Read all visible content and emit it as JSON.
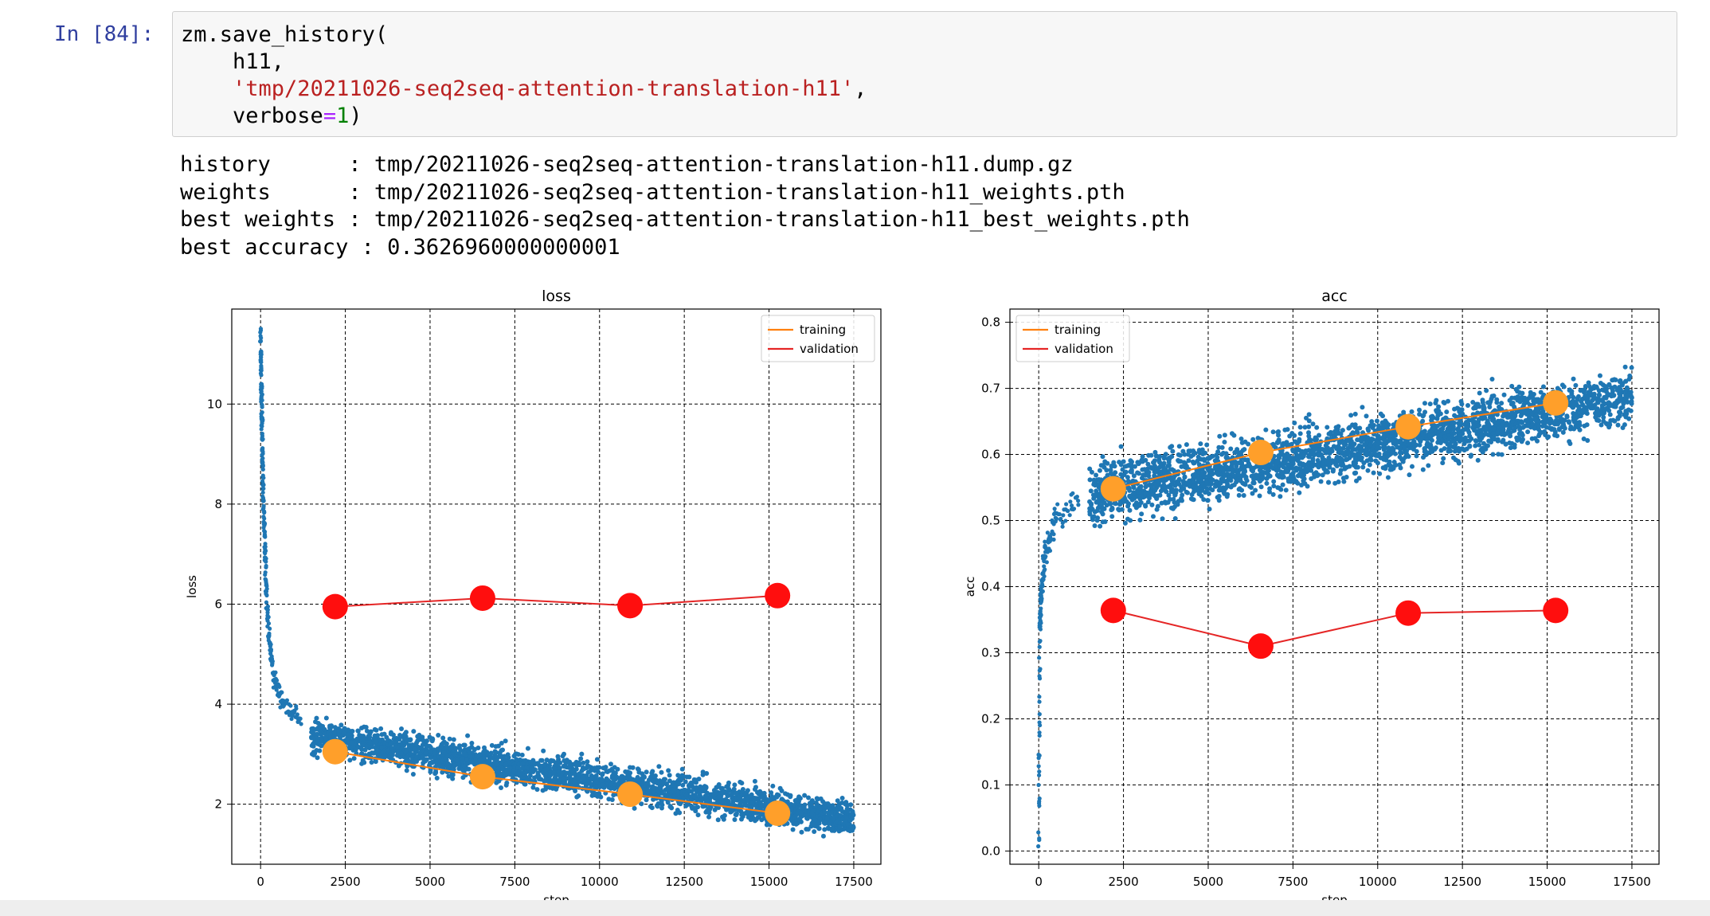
{
  "cell": {
    "prompt": "In [84]:",
    "code_lines": [
      {
        "pre": "zm.save_history(",
        "str": "",
        "op": "",
        "num": "",
        "post": ""
      },
      {
        "pre": "    h11,",
        "str": "",
        "op": "",
        "num": "",
        "post": ""
      },
      {
        "pre": "    ",
        "str": "'tmp/20211026-seq2seq-attention-translation-h11'",
        "op": "",
        "num": "",
        "post": ","
      },
      {
        "pre": "    verbose",
        "str": "",
        "op": "=",
        "num": "1",
        "post": ")"
      }
    ]
  },
  "output_lines": [
    "history      : tmp/20211026-seq2seq-attention-translation-h11.dump.gz",
    "weights      : tmp/20211026-seq2seq-attention-translation-h11_weights.pth",
    "best weights : tmp/20211026-seq2seq-attention-translation-h11_best_weights.pth",
    "best accuracy : 0.3626960000000001"
  ],
  "colors": {
    "scatter": "#1f77b4",
    "training": "#ff9f2a",
    "validation": "#ff0e0e",
    "training_line": "#ff7f0e",
    "validation_line": "#e52525"
  },
  "chart_data": [
    {
      "type": "scatter",
      "title": "loss",
      "xlabel": "step",
      "ylabel": "loss",
      "xlim": [
        -850,
        18300
      ],
      "ylim": [
        0.8,
        11.9
      ],
      "xticks": [
        0,
        2500,
        5000,
        7500,
        10000,
        12500,
        15000,
        17500
      ],
      "xtick_labels": [
        "0",
        "2500",
        "5000",
        "7500",
        "10000",
        "12500",
        "15000",
        "17500"
      ],
      "yticks": [
        2,
        4,
        6,
        8,
        10
      ],
      "ytick_labels": [
        "2",
        "4",
        "6",
        "8",
        "10"
      ],
      "grid": true,
      "legend_position": "top-right",
      "legend": [
        "training",
        "validation"
      ],
      "step_scatter": {
        "x_start": 0,
        "x_end": 17500,
        "early": [
          [
            0,
            11.4
          ],
          [
            20,
            10.5
          ],
          [
            40,
            9.6
          ],
          [
            70,
            8.5
          ],
          [
            110,
            7.4
          ],
          [
            170,
            6.3
          ],
          [
            250,
            5.3
          ],
          [
            400,
            4.5
          ],
          [
            700,
            4.0
          ],
          [
            1200,
            3.7
          ]
        ],
        "trend": [
          [
            1500,
            3.35
          ],
          [
            17500,
            1.7
          ]
        ],
        "spread": 0.35
      },
      "series": [
        {
          "name": "training",
          "x": [
            2200,
            6550,
            10900,
            15250
          ],
          "y": [
            3.05,
            2.55,
            2.2,
            1.82
          ]
        },
        {
          "name": "validation",
          "x": [
            2200,
            6550,
            10900,
            15250
          ],
          "y": [
            5.95,
            6.12,
            5.97,
            6.17
          ]
        }
      ]
    },
    {
      "type": "scatter",
      "title": "acc",
      "xlabel": "step",
      "ylabel": "acc",
      "xlim": [
        -850,
        18300
      ],
      "ylim": [
        -0.02,
        0.82
      ],
      "xticks": [
        0,
        2500,
        5000,
        7500,
        10000,
        12500,
        15000,
        17500
      ],
      "xtick_labels": [
        "0",
        "2500",
        "5000",
        "7500",
        "10000",
        "12500",
        "15000",
        "17500"
      ],
      "yticks": [
        0.0,
        0.1,
        0.2,
        0.3,
        0.4,
        0.5,
        0.6,
        0.7,
        0.8
      ],
      "ytick_labels": [
        "0.0",
        "0.1",
        "0.2",
        "0.3",
        "0.4",
        "0.5",
        "0.6",
        "0.7",
        "0.8"
      ],
      "grid": true,
      "legend_position": "top-left",
      "legend": [
        "training",
        "validation"
      ],
      "step_scatter": {
        "x_start": 0,
        "x_end": 17500,
        "early": [
          [
            0,
            0.0
          ],
          [
            30,
            0.34
          ],
          [
            80,
            0.4
          ],
          [
            200,
            0.45
          ],
          [
            500,
            0.5
          ],
          [
            1200,
            0.53
          ]
        ],
        "trend": [
          [
            1500,
            0.54
          ],
          [
            17500,
            0.685
          ]
        ],
        "spread": 0.045
      },
      "series": [
        {
          "name": "training",
          "x": [
            2200,
            6550,
            10900,
            15250
          ],
          "y": [
            0.548,
            0.603,
            0.642,
            0.678
          ]
        },
        {
          "name": "validation",
          "x": [
            2200,
            6550,
            10900,
            15250
          ],
          "y": [
            0.364,
            0.31,
            0.36,
            0.364
          ]
        }
      ]
    }
  ]
}
